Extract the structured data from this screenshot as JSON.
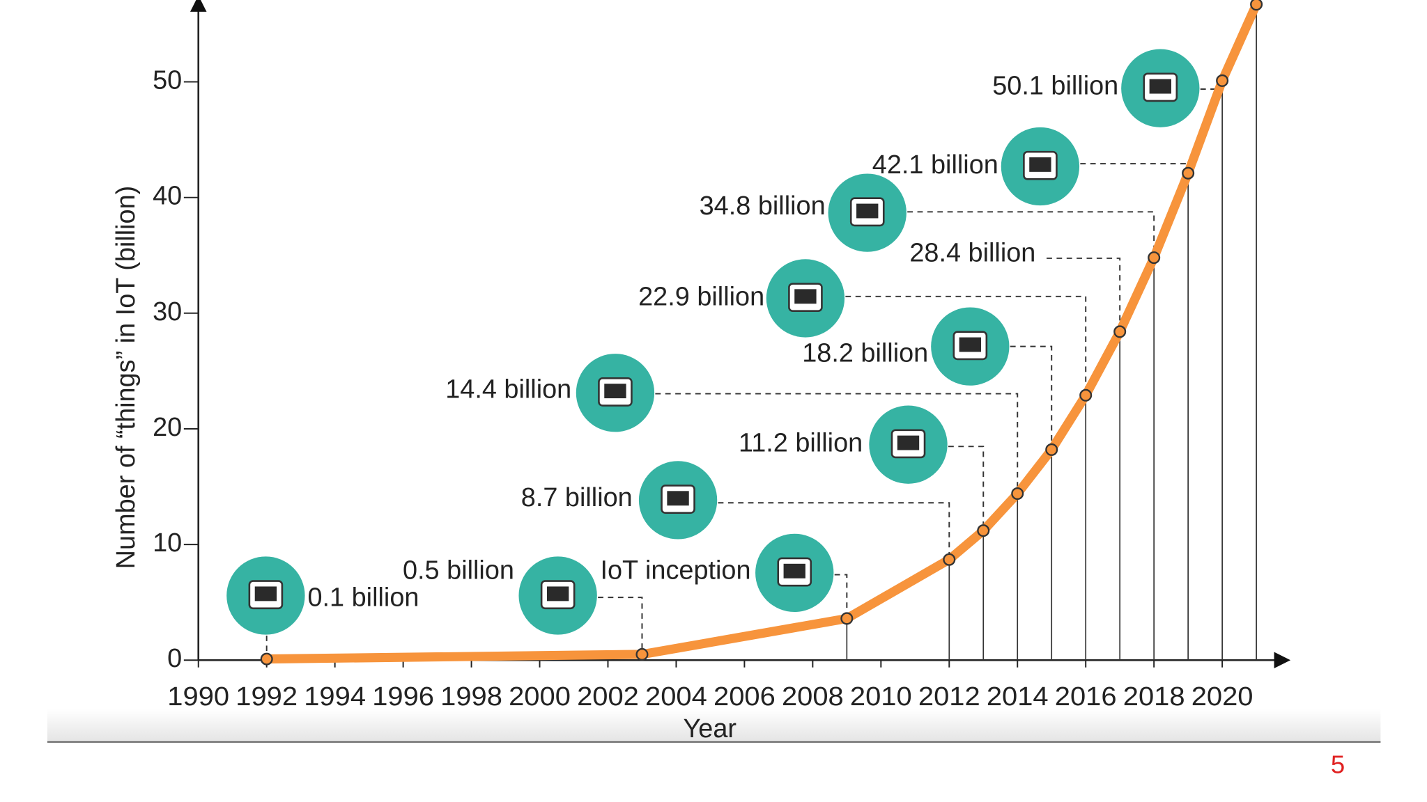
{
  "chart_data": {
    "type": "line",
    "y_label": "Number of “things” in IoT (billion)",
    "x_label": "Year",
    "x": [
      1992,
      2003,
      2009,
      2012,
      2013,
      2014,
      2015,
      2016,
      2017,
      2018,
      2019,
      2020,
      2021
    ],
    "series": [
      {
        "color": "#f7943c",
        "values": [
          0.1,
          0.5,
          3.6,
          8.7,
          11.2,
          14.4,
          18.2,
          22.9,
          28.4,
          34.8,
          42.1,
          50.1,
          56.7
        ],
        "value_labels": [
          "0.1 billion",
          "0.5 billion",
          "IoT inception",
          "8.7 billion",
          "11.2 billion",
          "14.4 billion",
          "18.2 billion",
          "22.9 billion",
          "28.4 billion",
          "34.8 billion",
          "42.1 billion",
          "50.1 billion",
          null
        ]
      }
    ],
    "xlim": [
      1990,
      2022
    ],
    "xticks": [
      1990,
      1992,
      1994,
      1996,
      1998,
      2000,
      2002,
      2004,
      2006,
      2008,
      2010,
      2012,
      2014,
      2016,
      2018,
      2020
    ],
    "ylim": [
      0,
      57
    ],
    "yticks": [
      0,
      10,
      20,
      30,
      40,
      50
    ]
  },
  "page_number": "5"
}
